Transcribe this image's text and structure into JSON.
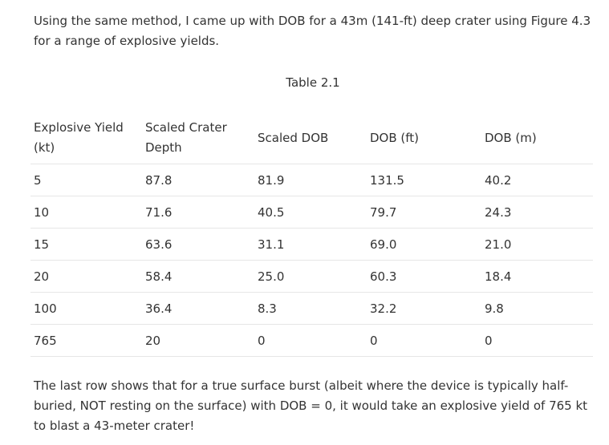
{
  "intro_text": "Using the same method, I came up with DOB for a 43m (141-ft) deep crater using Figure 4.3 for a range of explosive yields.",
  "table_caption": "Table 2.1",
  "table": {
    "headers": [
      "Explosive Yield (kt)",
      "Scaled Crater Depth",
      "Scaled DOB",
      "DOB (ft)",
      "DOB (m)"
    ],
    "rows": [
      [
        "5",
        "87.8",
        "81.9",
        "131.5",
        "40.2"
      ],
      [
        "10",
        "71.6",
        "40.5",
        "79.7",
        "24.3"
      ],
      [
        "15",
        "63.6",
        "31.1",
        "69.0",
        "21.0"
      ],
      [
        "20",
        "58.4",
        "25.0",
        "60.3",
        "18.4"
      ],
      [
        "100",
        "36.4",
        "8.3",
        "32.2",
        "9.8"
      ],
      [
        "765",
        "20",
        "0",
        "0",
        "0"
      ]
    ]
  },
  "outro_text": "The last row shows that for a true surface burst (albeit where the device is typically half-buried, NOT resting on the surface) with DOB = 0, it would take an explosive yield of 765 kt to blast a 43-meter crater!"
}
